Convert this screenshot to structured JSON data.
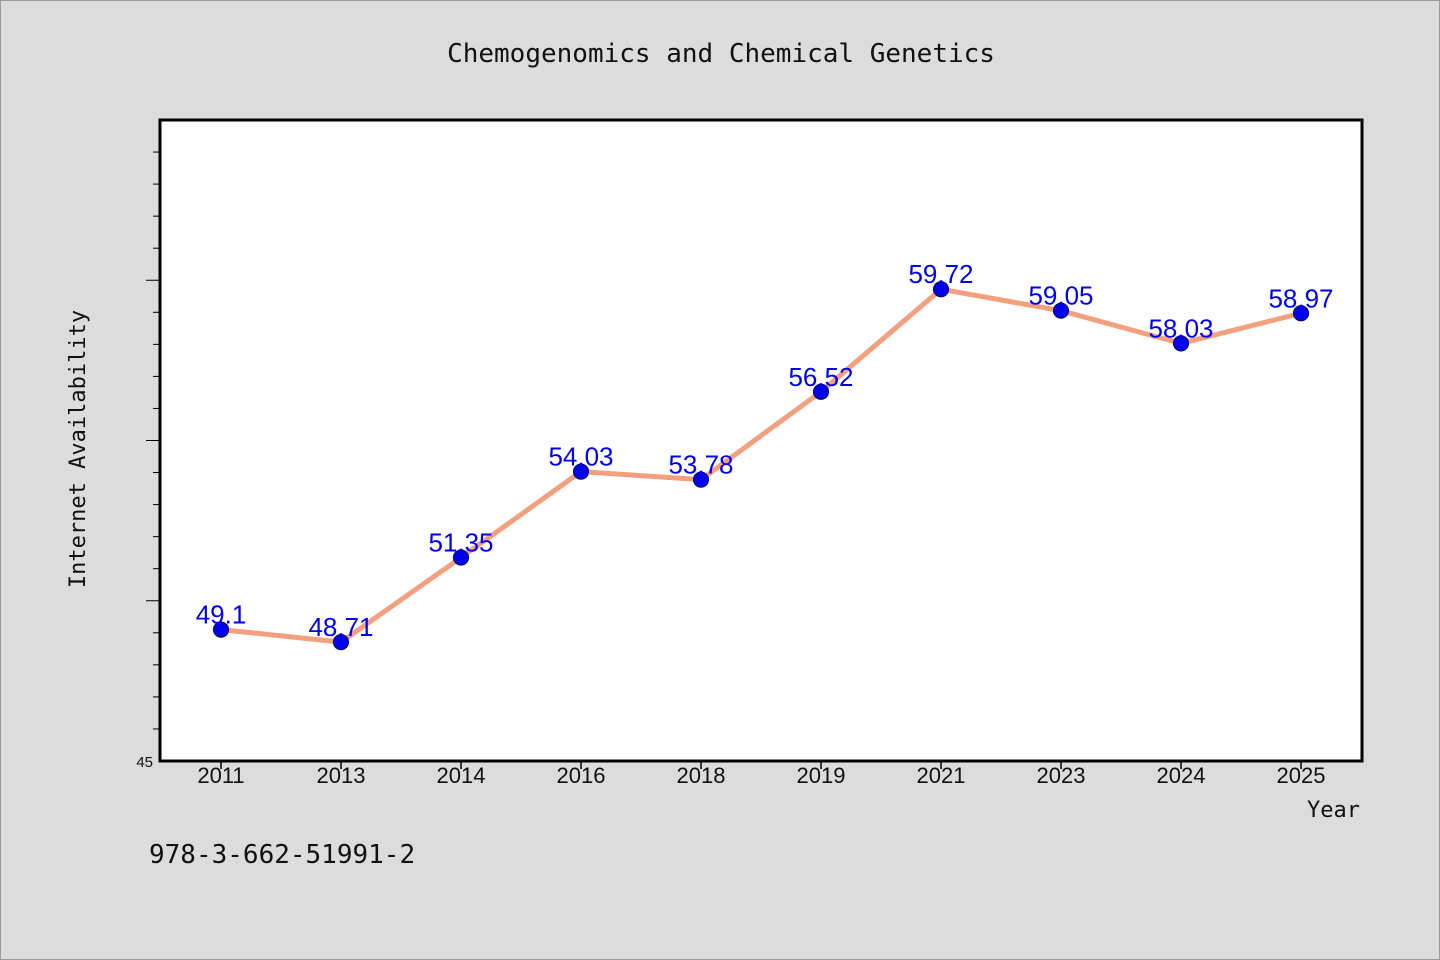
{
  "chart_data": {
    "type": "line",
    "title": "Chemogenomics and Chemical Genetics",
    "xlabel": "Year",
    "ylabel": "Internet Availability",
    "categories": [
      "2011",
      "2013",
      "2014",
      "2016",
      "2018",
      "2019",
      "2021",
      "2023",
      "2024",
      "2025"
    ],
    "series": [
      {
        "values": [
          49.1,
          48.71,
          51.35,
          54.03,
          53.78,
          56.52,
          59.72,
          59.05,
          58.03,
          58.97
        ],
        "labels": [
          "49.1",
          "48.71",
          "51.35",
          "54.03",
          "53.78",
          "56.52",
          "59.72",
          "59.05",
          "58.03",
          "58.97"
        ]
      }
    ],
    "ylim": [
      45,
      65
    ],
    "yticks_labeled": [
      "45"
    ],
    "grid": false,
    "legend": "none",
    "colors": {
      "line": "#f4a07e",
      "marker": "#0000ee",
      "marker_edge": "#0a0a6a",
      "data_label": "#0000ee",
      "plot_background": "#ffffff",
      "figure_background": "#dcdcdc"
    }
  },
  "footer": {
    "isbn": "978-3-662-51991-2"
  }
}
